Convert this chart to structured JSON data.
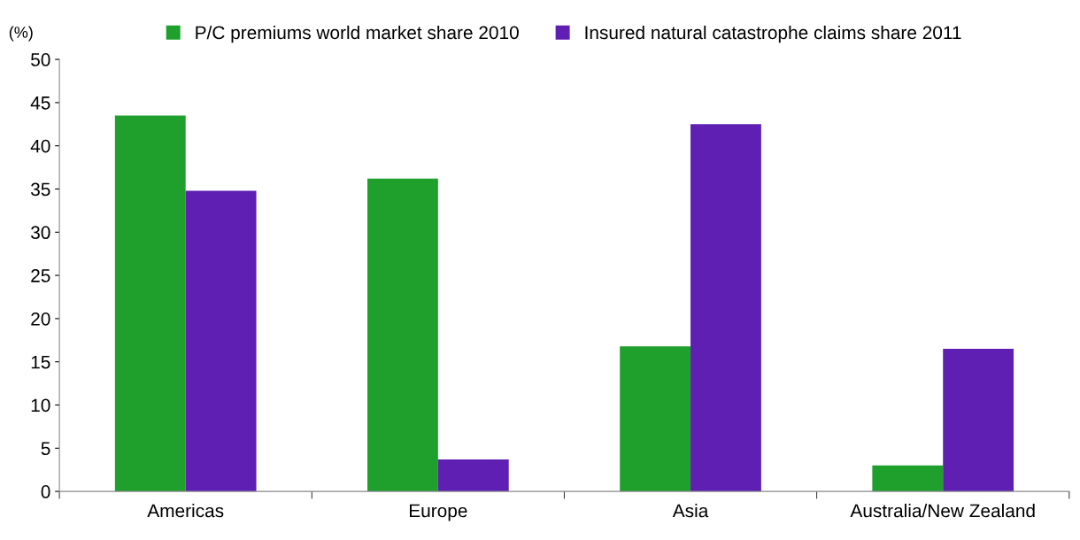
{
  "chart_data": {
    "type": "bar",
    "ylabel": "(%)",
    "categories": [
      "Americas",
      "Europe",
      "Asia",
      "Australia/New Zealand"
    ],
    "series": [
      {
        "name": "P/C premiums world market share 2010",
        "color": "#1fa02c",
        "values": [
          43.5,
          36.2,
          16.8,
          3.0
        ]
      },
      {
        "name": "Insured natural catastrophe claims share 2011",
        "color": "#5f1fb3",
        "values": [
          34.8,
          3.7,
          42.5,
          16.5
        ]
      }
    ],
    "ylim": [
      0,
      50
    ],
    "yticks": [
      0,
      5,
      10,
      15,
      20,
      25,
      30,
      35,
      40,
      45,
      50
    ],
    "grid": false,
    "legend": "top"
  }
}
